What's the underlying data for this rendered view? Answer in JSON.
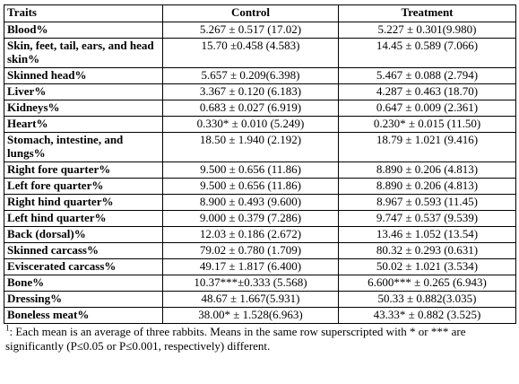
{
  "table": {
    "headers": [
      "Traits",
      "Control",
      "Treatment"
    ],
    "rows": [
      {
        "trait": "Blood%",
        "control": "5.267 ± 0.517 (17.02)",
        "treatment": "5.227 ± 0.301(9.980)",
        "lines": 1
      },
      {
        "trait": "Skin, feet, tail, ears, and head skin%",
        "control": "15.70 ±0.458 (4.583)",
        "treatment": "14.45 ± 0.589 (7.066)",
        "lines": 2
      },
      {
        "trait": "Skinned head%",
        "control": "5.657 ± 0.209(6.398)",
        "treatment": "5.467 ± 0.088 (2.794)",
        "lines": 1
      },
      {
        "trait": "Liver%",
        "control": "3.367 ± 0.120 (6.183)",
        "treatment": "4.287 ± 0.463 (18.70)",
        "lines": 1
      },
      {
        "trait": "Kidneys%",
        "control": "0.683 ± 0.027 (6.919)",
        "treatment": "0.647 ± 0.009 (2.361)",
        "lines": 1
      },
      {
        "trait": "Heart%",
        "control": "0.330* ± 0.010 (5.249)",
        "treatment": "0.230* ± 0.015 (11.50)",
        "lines": 1
      },
      {
        "trait": "Stomach, intestine, and lungs%",
        "control": "18.50 ± 1.940 (2.192)",
        "treatment": "18.79 ± 1.021 (9.416)",
        "lines": 2
      },
      {
        "trait": "Right fore quarter%",
        "control": "9.500 ± 0.656 (11.86)",
        "treatment": "8.890 ± 0.206 (4.813)",
        "lines": 1
      },
      {
        "trait": "Left fore quarter%",
        "control": "9.500 ± 0.656 (11.86)",
        "treatment": "8.890 ± 0.206 (4.813)",
        "lines": 1
      },
      {
        "trait": "Right hind quarter%",
        "control": "8.900 ± 0.493 (9.600)",
        "treatment": "8.967 ± 0.593 (11.45)",
        "lines": 1
      },
      {
        "trait": "Left hind quarter%",
        "control": "9.000 ± 0.379 (7.286)",
        "treatment": "9.747 ± 0.537 (9.539)",
        "lines": 1
      },
      {
        "trait": "Back (dorsal)%",
        "control": "12.03 ± 0.186 (2.672)",
        "treatment": "13.46 ± 1.052 (13.54)",
        "lines": 1
      },
      {
        "trait": "Skinned carcass%",
        "control": "79.02 ± 0.780 (1.709)",
        "treatment": "80.32 ± 0.293 (0.631)",
        "lines": 1
      },
      {
        "trait": "Eviscerated carcass%",
        "control": "49.17 ± 1.817 (6.400)",
        "treatment": "50.02 ± 1.021 (3.534)",
        "lines": 1
      },
      {
        "trait": "Bone%",
        "control": "10.37***±0.333 (5.568)",
        "treatment": "6.600*** ± 0.265 (6.943)",
        "lines": 1
      },
      {
        "trait": "Dressing%",
        "control": "48.67 ± 1.667(5.931)",
        "treatment": "50.33 ± 0.882(3.035)",
        "lines": 1
      },
      {
        "trait": "Boneless meat%",
        "control": "38.00* ± 1.528(6.963)",
        "treatment": "43.33* ± 0.882 (3.525)",
        "lines": 1
      }
    ]
  },
  "footnote": {
    "marker": "1",
    "text": ": Each mean is an average of three rabbits. Means in the same row superscripted with * or *** are significantly (P≤0.05 or P≤0.001, respectively) different."
  }
}
